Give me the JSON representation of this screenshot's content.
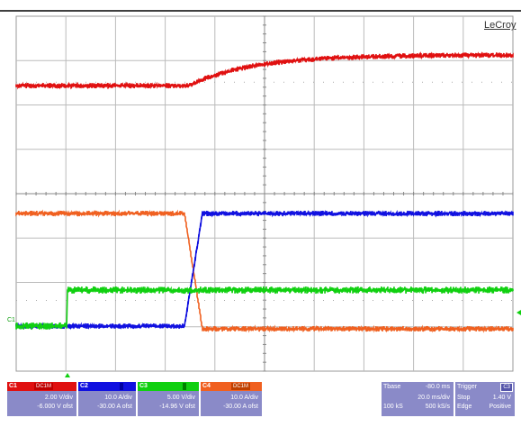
{
  "brand": "LeCroy",
  "marker": "C1",
  "colors": {
    "c1": "#e01010",
    "c2": "#1010e0",
    "c3": "#10d010",
    "c4": "#f06020",
    "panel": "#8a8ac8",
    "grid": "#bbbbbb"
  },
  "channels": [
    {
      "id": "C1",
      "coupling": "DC1M",
      "vdiv": "2.00 V/div",
      "offset": "-6.000 V ofst"
    },
    {
      "id": "C2",
      "coupling": "",
      "vdiv": "10.0 A/div",
      "offset": "-30.00 A ofst"
    },
    {
      "id": "C3",
      "coupling": "",
      "vdiv": "5.00 V/div",
      "offset": "-14.96 V ofst"
    },
    {
      "id": "C4",
      "coupling": "DC1M",
      "vdiv": "10.0 A/div",
      "offset": "-30.00 A ofst"
    }
  ],
  "timebase": {
    "label": "Tbase",
    "delay": "-80.0 ms",
    "tdiv": "20.0 ms/div",
    "samples": "100 kS",
    "rate": "500 kS/s"
  },
  "trigger": {
    "label": "Trigger",
    "source": "C3",
    "mode": "Stop",
    "level": "1.40 V",
    "type": "Edge",
    "slope": "Positive"
  }
}
